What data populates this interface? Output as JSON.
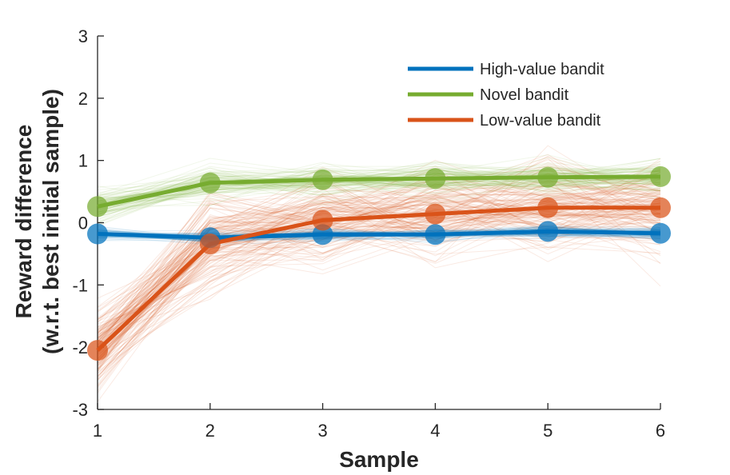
{
  "chart_data": {
    "type": "line",
    "x": [
      1,
      2,
      3,
      4,
      5,
      6
    ],
    "xlabel": "Sample",
    "ylabel_lines": [
      "Reward difference",
      "(w.r.t. best initial sample)"
    ],
    "xlim": [
      1,
      6
    ],
    "ylim": [
      -3,
      3
    ],
    "xticks": [
      1,
      2,
      3,
      4,
      5,
      6
    ],
    "yticks": [
      -3,
      -2,
      -1,
      0,
      1,
      2,
      3
    ],
    "xtick_labels": [
      "1",
      "2",
      "3",
      "4",
      "5",
      "6"
    ],
    "ytick_labels": [
      "-3",
      "-2",
      "-1",
      "0",
      "1",
      "2",
      "3"
    ],
    "grid": false,
    "legend_position": "top-right",
    "series": [
      {
        "name": "High-value bandit",
        "color": "#0072BD",
        "values": [
          -0.18,
          -0.24,
          -0.19,
          -0.19,
          -0.14,
          -0.17
        ]
      },
      {
        "name": "Novel bandit",
        "color": "#77AC30",
        "values": [
          0.26,
          0.64,
          0.69,
          0.71,
          0.73,
          0.74
        ]
      },
      {
        "name": "Low-value bandit",
        "color": "#D95319",
        "values": [
          -2.05,
          -0.34,
          0.04,
          0.14,
          0.24,
          0.24
        ]
      }
    ]
  }
}
